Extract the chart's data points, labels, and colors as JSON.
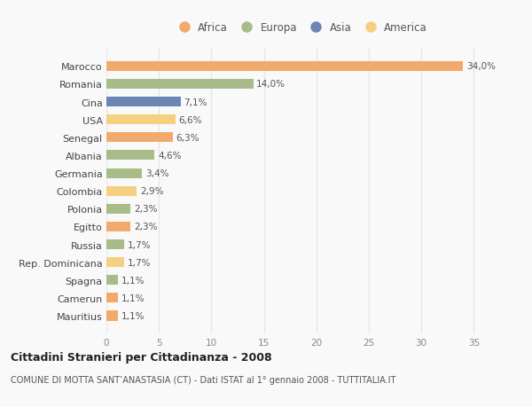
{
  "countries": [
    "Marocco",
    "Romania",
    "Cina",
    "USA",
    "Senegal",
    "Albania",
    "Germania",
    "Colombia",
    "Polonia",
    "Egitto",
    "Russia",
    "Rep. Dominicana",
    "Spagna",
    "Camerun",
    "Mauritius"
  ],
  "values": [
    34.0,
    14.0,
    7.1,
    6.6,
    6.3,
    4.6,
    3.4,
    2.9,
    2.3,
    2.3,
    1.7,
    1.7,
    1.1,
    1.1,
    1.1
  ],
  "labels": [
    "34,0%",
    "14,0%",
    "7,1%",
    "6,6%",
    "6,3%",
    "4,6%",
    "3,4%",
    "2,9%",
    "2,3%",
    "2,3%",
    "1,7%",
    "1,7%",
    "1,1%",
    "1,1%",
    "1,1%"
  ],
  "continents": [
    "Africa",
    "Europa",
    "Asia",
    "America",
    "Africa",
    "Europa",
    "Europa",
    "America",
    "Europa",
    "Africa",
    "Europa",
    "America",
    "Europa",
    "Africa",
    "Africa"
  ],
  "continent_colors": {
    "Africa": "#F2A96C",
    "Europa": "#A8BC8A",
    "Asia": "#6B85B5",
    "America": "#F4D080"
  },
  "legend_order": [
    "Africa",
    "Europa",
    "Asia",
    "America"
  ],
  "xlim": [
    0,
    37
  ],
  "xticks": [
    0,
    5,
    10,
    15,
    20,
    25,
    30,
    35
  ],
  "background_color": "#f9f9f9",
  "grid_color": "#e8e8e8",
  "title": "Cittadini Stranieri per Cittadinanza - 2008",
  "subtitle": "COMUNE DI MOTTA SANT’ANASTASIA (CT) - Dati ISTAT al 1° gennaio 2008 - TUTTITALIA.IT",
  "bar_height": 0.55,
  "figsize": [
    6.0,
    4.6
  ],
  "dpi": 100
}
